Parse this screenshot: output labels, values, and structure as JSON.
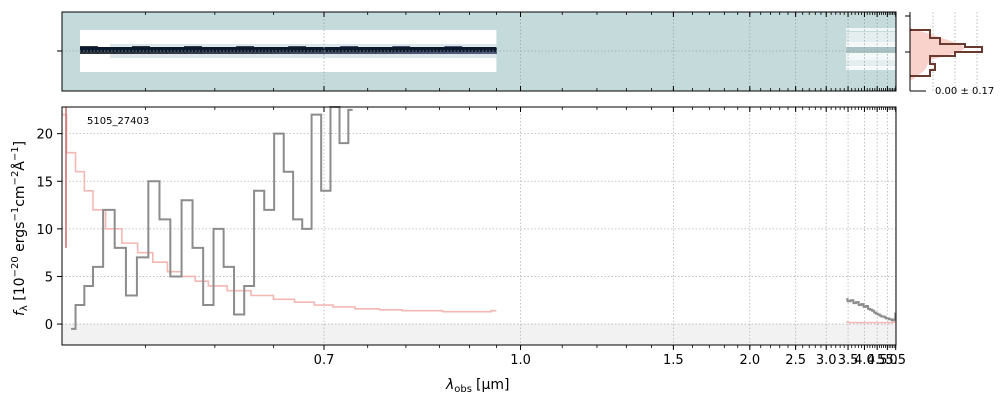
{
  "chart_data": {
    "type": "line",
    "object_id": "5105_27403",
    "xlabel_main": "λ",
    "xlabel_sub": "obs",
    "xlabel_unit": "[μm]",
    "ylabel": "f_λ [10^-20 ergs^-1 cm^-2 Å^-1]",
    "ylabel_parts": {
      "a": "f",
      "b": "λ",
      "c": " [10",
      "d": "−20",
      "e": " ergs",
      "f": "−1",
      "g": "cm",
      "h": "−2",
      "i": "Å",
      "j": "−1",
      "k": "]"
    },
    "x_scale": "reciprocal",
    "xlim": [
      0.5,
      5.52
    ],
    "ylim": [
      -2.2,
      22.8
    ],
    "x_ticks": [
      {
        "v": 0.7,
        "t": "0.7"
      },
      {
        "v": 1.0,
        "t": "1.0"
      },
      {
        "v": 1.5,
        "t": "1.5"
      },
      {
        "v": 2.0,
        "t": "2.0"
      },
      {
        "v": 2.5,
        "t": "2.5"
      },
      {
        "v": 3.0,
        "t": "3.0"
      },
      {
        "v": 3.5,
        "t": "3.5"
      },
      {
        "v": 4.0,
        "t": "4.0"
      },
      {
        "v": 4.5,
        "t": "4.5"
      },
      {
        "v": 5.0,
        "t": "5.0"
      },
      {
        "v": 5.5,
        "t": "5.5"
      }
    ],
    "y_ticks": [
      0,
      5,
      10,
      15,
      20
    ],
    "grid": true,
    "colors": {
      "flux": "#8c8c8c",
      "error": "#f4b8b4",
      "error_edge": "#c96a6a",
      "spec2d_bg": "#c5dada",
      "hist_fill": "#f9d2cc",
      "hist_line": "#6b3a2e",
      "zero_band": "#f2f2f2"
    },
    "histogram_label": "0.00 ± 0.17",
    "series": [
      {
        "role": "flux-prism-blue",
        "x": [
          0.505,
          0.51,
          0.515,
          0.52,
          0.527,
          0.534,
          0.541,
          0.548,
          0.556,
          0.563,
          0.571,
          0.579,
          0.587,
          0.595,
          0.603,
          0.611,
          0.62,
          0.628,
          0.637,
          0.646,
          0.655,
          0.664,
          0.673,
          0.682,
          0.692,
          0.702,
          0.712,
          0.722,
          0.732
        ],
        "y": [
          -0.5,
          2,
          4,
          6,
          12,
          8,
          3,
          7,
          15,
          11,
          5,
          13,
          8,
          2,
          10,
          6,
          1,
          4,
          14,
          12,
          20,
          16,
          11,
          10,
          22,
          14,
          23,
          19,
          22.5
        ]
      },
      {
        "role": "error-prism-blue",
        "x": [
          0.5,
          0.505,
          0.51,
          0.515,
          0.52,
          0.53,
          0.54,
          0.55,
          0.56,
          0.57,
          0.58,
          0.59,
          0.6,
          0.62,
          0.64,
          0.66,
          0.68,
          0.7,
          0.72,
          0.75,
          0.78,
          0.81,
          0.84,
          0.87,
          0.9,
          0.93,
          0.95
        ],
        "y": [
          22,
          18,
          16,
          14,
          12,
          10,
          8.5,
          7.5,
          6.5,
          5.5,
          5,
          4.5,
          4,
          3.5,
          3,
          2.6,
          2.3,
          2,
          1.8,
          1.6,
          1.5,
          1.4,
          1.4,
          1.3,
          1.3,
          1.3,
          1.4
        ]
      },
      {
        "role": "flux-red",
        "x": [
          3.45,
          3.53,
          3.61,
          3.69,
          3.77,
          3.85,
          3.93,
          4.01,
          4.09,
          4.17,
          4.25,
          4.33,
          4.41,
          4.49,
          4.57,
          4.65,
          4.73,
          4.81,
          4.89,
          4.97,
          5.05,
          5.13,
          5.21,
          5.29,
          5.37,
          5.45,
          5.5
        ],
        "y": [
          2.6,
          2.4,
          2.5,
          2.2,
          2.3,
          2.0,
          2.1,
          1.8,
          1.9,
          1.6,
          1.5,
          1.4,
          1.2,
          1.1,
          1.0,
          0.9,
          0.8,
          0.8,
          0.7,
          0.6,
          0.6,
          0.5,
          0.5,
          0.4,
          0.4,
          0.5,
          1.1
        ]
      },
      {
        "role": "error-red",
        "x": [
          3.45,
          3.6,
          3.8,
          4.0,
          4.2,
          4.4,
          4.6,
          4.8,
          5.0,
          5.2,
          5.4,
          5.5
        ],
        "y": [
          0.2,
          0.15,
          0.15,
          0.15,
          0.15,
          0.15,
          0.15,
          0.15,
          0.15,
          0.15,
          0.2,
          0.2
        ]
      }
    ]
  }
}
